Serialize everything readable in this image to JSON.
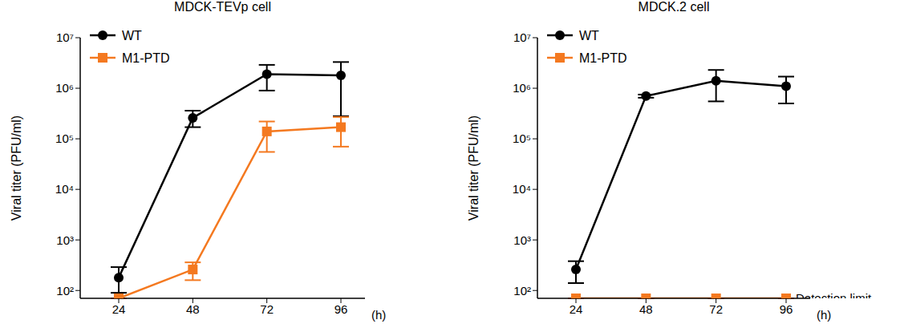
{
  "chart_data": [
    {
      "type": "line",
      "title": "MDCK-TEVp cell",
      "y_label": "Viral titer (PFU/ml)",
      "x_label": "(h)",
      "categories": [
        "24",
        "48",
        "72",
        "96"
      ],
      "log": "y",
      "legend": "upper left",
      "ylim": [
        70,
        10000000
      ],
      "yticks": [
        {
          "value": 100,
          "label": "10²"
        },
        {
          "value": 1000,
          "label": "10³"
        },
        {
          "value": 10000,
          "label": "10⁴"
        },
        {
          "value": 100000,
          "label": "10⁵"
        },
        {
          "value": 1000000,
          "label": "10⁶"
        },
        {
          "value": 10000000,
          "label": "10⁷"
        }
      ],
      "series": [
        {
          "name": "WT",
          "color": "#000000",
          "marker": "circle",
          "values": [
            180,
            260000,
            1900000,
            1800000
          ],
          "error_range": [
            [
              90,
              290
            ],
            [
              170000,
              360000
            ],
            [
              900000,
              2900000
            ],
            [
              280000,
              3300000
            ]
          ]
        },
        {
          "name": "M1-PTD",
          "color": "#f47920",
          "marker": "square",
          "values": [
            70,
            260,
            140000,
            170000
          ],
          "error_range": [
            null,
            [
              160,
              360
            ],
            [
              55000,
              220000
            ],
            [
              70000,
              270000
            ]
          ]
        }
      ]
    },
    {
      "type": "line",
      "title": "MDCK.2 cell",
      "y_label": "Viral titer (PFU/ml)",
      "x_label": "(h)",
      "categories": [
        "24",
        "48",
        "72",
        "96"
      ],
      "log": "y",
      "legend": "upper left",
      "ylim": [
        70,
        10000000
      ],
      "yticks": [
        {
          "value": 100,
          "label": "10²"
        },
        {
          "value": 1000,
          "label": "10³"
        },
        {
          "value": 10000,
          "label": "10⁴"
        },
        {
          "value": 100000,
          "label": "10⁵"
        },
        {
          "value": 1000000,
          "label": "10⁶"
        },
        {
          "value": 10000000,
          "label": "10⁷"
        }
      ],
      "annotation": {
        "text": "Detection limit",
        "series": "M1-PTD"
      },
      "series": [
        {
          "name": "WT",
          "color": "#000000",
          "marker": "circle",
          "values": [
            260,
            700000,
            1400000,
            1100000
          ],
          "error_range": [
            [
              140,
              380
            ],
            [
              650000,
              750000
            ],
            [
              550000,
              2300000
            ],
            [
              500000,
              1700000
            ]
          ]
        },
        {
          "name": "M1-PTD",
          "color": "#f47920",
          "marker": "square",
          "values": [
            70,
            70,
            70,
            70
          ],
          "error_range": [
            null,
            null,
            null,
            null
          ]
        }
      ]
    }
  ]
}
